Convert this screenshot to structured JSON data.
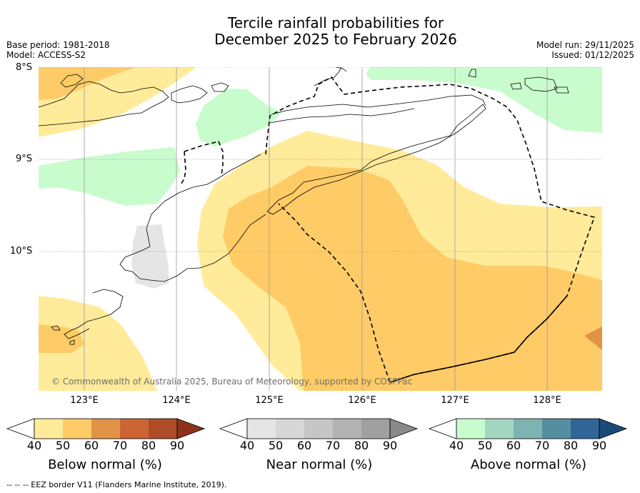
{
  "header": {
    "title_line1": "Tercile rainfall probabilities for",
    "title_line2": "December 2025 to February 2026",
    "base_period": "Base period: 1981-2018",
    "model": "Model: ACCESS-S2",
    "model_run": "Model run: 29/11/2025",
    "issued": "Issued: 01/12/2025"
  },
  "map": {
    "lat_labels": [
      "8°S",
      "9°S",
      "10°S"
    ],
    "lon_labels": [
      "123°E",
      "124°E",
      "125°E",
      "126°E",
      "127°E",
      "128°E"
    ],
    "copyright": "© Commonwealth of Australia 2025, Bureau of Meteorology, supported by COSPPac",
    "colors": {
      "below_50": "#ffeb9a",
      "below_60": "#fecb66",
      "below_70": "#e09346",
      "above_50": "#c8fccc",
      "near_50": "#e5e5e5"
    }
  },
  "legends": [
    {
      "name": "below",
      "label": "Below normal (%)",
      "ticks": [
        "40",
        "50",
        "60",
        "70",
        "80",
        "90"
      ],
      "colors": [
        "#ffeb9a",
        "#fecb66",
        "#e09346",
        "#cc6533",
        "#af4c28",
        "#8c321c"
      ]
    },
    {
      "name": "near",
      "label": "Near normal (%)",
      "ticks": [
        "40",
        "50",
        "60",
        "70",
        "80",
        "90"
      ],
      "colors": [
        "#e5e5e5",
        "#d7d7d7",
        "#c6c6c6",
        "#b3b3b3",
        "#a0a0a0",
        "#8a8a8a"
      ]
    },
    {
      "name": "above",
      "label": "Above normal (%)",
      "ticks": [
        "40",
        "50",
        "60",
        "70",
        "80",
        "90"
      ],
      "colors": [
        "#c8fccc",
        "#a3d6c0",
        "#7db3b0",
        "#558f9f",
        "#2f6697",
        "#1a4a7a"
      ]
    }
  ],
  "footer": {
    "eez_note": "--  --  -- EEZ border V11 (Flanders Marine Institute, 2019)."
  }
}
